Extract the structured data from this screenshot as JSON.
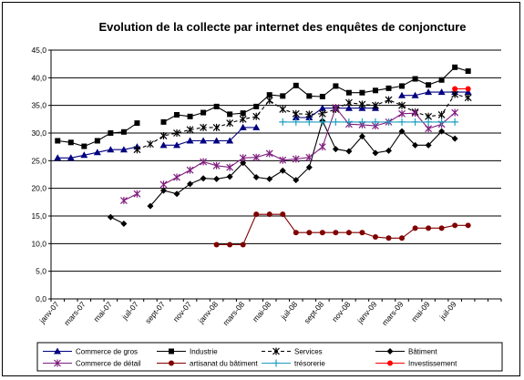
{
  "chart_data": {
    "type": "line",
    "title": "Evolution de la collecte par internet des enquêtes de conjoncture",
    "xlabel": "",
    "ylabel": "",
    "ylim": [
      0,
      45
    ],
    "ytick_step": 5,
    "ytick_labels": [
      "0,0",
      "5,0",
      "10,0",
      "15,0",
      "20,0",
      "25,0",
      "30,0",
      "35,0",
      "40,0",
      "45,0"
    ],
    "grid": "horizontal",
    "legend_position": "bottom",
    "x": [
      "janv-07",
      "févr-07",
      "mars-07",
      "avr-07",
      "mai-07",
      "juin-07",
      "juil-07",
      "août-07",
      "sept-07",
      "oct-07",
      "nov-07",
      "déc-07",
      "janv-08",
      "févr-08",
      "mars-08",
      "avr-08",
      "mai-08",
      "juin-08",
      "juil-08",
      "août-08",
      "sept-08",
      "oct-08",
      "nov-08",
      "déc-08",
      "janv-09",
      "févr-09",
      "mars-09",
      "avr-09",
      "mai-09",
      "juin-09",
      "juil-09",
      "août-09",
      "sept-09",
      "oct-09"
    ],
    "x_tick_labels": [
      "janv-07",
      "mars-07",
      "mai-07",
      "juil-07",
      "sept-07",
      "nov-07",
      "janv-08",
      "mars-08",
      "mai-08",
      "juil-08",
      "sept-08",
      "nov-08",
      "janv-09",
      "mars-09",
      "mai-09",
      "juil-09"
    ],
    "series": [
      {
        "name": "Commerce de gros",
        "color": "#000080",
        "marker": "triangle",
        "dash": "none",
        "values": [
          25.5,
          25.5,
          26,
          26.5,
          27,
          27,
          27.5,
          null,
          27.8,
          27.8,
          28.6,
          28.6,
          28.6,
          28.6,
          31,
          31,
          null,
          null,
          32.8,
          32.8,
          34.5,
          34.5,
          34.5,
          34.5,
          34.5,
          null,
          36.8,
          36.8,
          37.4,
          37.4,
          37.4,
          37.4,
          null,
          null
        ]
      },
      {
        "name": "Industrie",
        "color": "#000000",
        "marker": "square",
        "dash": "none",
        "values": [
          28.6,
          28.3,
          27.6,
          28.6,
          30,
          30.2,
          31.8,
          null,
          32,
          33.3,
          33,
          33.7,
          34.8,
          33.4,
          33.6,
          34.8,
          36.9,
          36.7,
          38.6,
          36.7,
          36.6,
          38.5,
          37.3,
          37.3,
          37.7,
          38.1,
          38.5,
          39.8,
          38.7,
          39.6,
          41.9,
          41.2,
          null,
          null
        ]
      },
      {
        "name": "Services",
        "color": "#000000",
        "marker": "star",
        "dash": "4,3",
        "values": [
          null,
          null,
          null,
          null,
          null,
          null,
          27,
          28,
          29.5,
          30,
          30.6,
          31,
          31,
          31.8,
          32.5,
          33,
          35.9,
          34.3,
          33.5,
          33.4,
          33.5,
          34.3,
          35.5,
          35.2,
          35,
          36,
          35,
          33.8,
          33,
          33.3,
          37,
          36.4,
          null,
          null
        ]
      },
      {
        "name": "Bâtiment",
        "color": "#000000",
        "marker": "diamond",
        "dash": "none",
        "values": [
          null,
          null,
          null,
          null,
          14.8,
          13.6,
          null,
          16.8,
          19.6,
          19,
          20.8,
          21.8,
          21.7,
          22.1,
          24.6,
          22,
          21.7,
          23.2,
          21.5,
          23.8,
          32.2,
          27.1,
          26.7,
          29.4,
          26.4,
          26.8,
          30.3,
          27.8,
          27.8,
          30.3,
          29,
          null,
          null,
          null
        ]
      },
      {
        "name": "Commerce de détail",
        "color": "#7f1f7f",
        "marker": "star",
        "dash": "none",
        "values": [
          null,
          null,
          null,
          null,
          null,
          17.8,
          19,
          null,
          20.7,
          22,
          23.3,
          24.8,
          24.1,
          23.8,
          25.5,
          25.6,
          26.3,
          25.1,
          25.3,
          25.6,
          27.5,
          34.6,
          31.6,
          31.5,
          31.3,
          32,
          33.5,
          33.6,
          30.8,
          31.6,
          33.7,
          null,
          null,
          null
        ]
      },
      {
        "name": "artisanat du bâtiment",
        "color": "#800000",
        "marker": "circle",
        "dash": "none",
        "values": [
          null,
          null,
          null,
          null,
          null,
          null,
          null,
          null,
          null,
          null,
          null,
          null,
          9.8,
          9.8,
          9.8,
          15.3,
          15.3,
          15.3,
          12,
          12,
          12,
          12,
          12,
          12,
          11.2,
          11,
          11,
          12.8,
          12.8,
          12.8,
          13.3,
          13.3,
          null,
          null
        ]
      },
      {
        "name": "trésorerie",
        "color": "#1f9fbf",
        "marker": "plus",
        "dash": "none",
        "values": [
          null,
          null,
          null,
          null,
          null,
          null,
          null,
          null,
          null,
          null,
          null,
          null,
          null,
          null,
          null,
          null,
          null,
          32,
          32,
          32,
          32,
          32,
          32,
          32,
          32,
          32,
          32,
          32,
          32,
          32,
          32,
          null,
          null,
          null
        ]
      },
      {
        "name": "Investissement",
        "color": "#ff0000",
        "marker": "circle",
        "dash": "none",
        "values": [
          null,
          null,
          null,
          null,
          null,
          null,
          null,
          null,
          null,
          null,
          null,
          null,
          null,
          null,
          null,
          null,
          null,
          null,
          null,
          null,
          null,
          null,
          null,
          null,
          null,
          null,
          null,
          null,
          null,
          null,
          38,
          38,
          null,
          null
        ]
      }
    ]
  }
}
